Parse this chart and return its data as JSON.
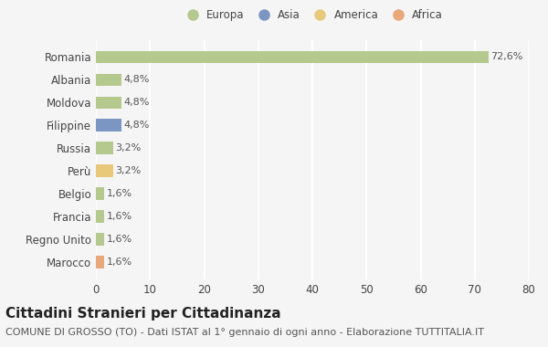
{
  "categories": [
    "Romania",
    "Albania",
    "Moldova",
    "Filippine",
    "Russia",
    "Perù",
    "Belgio",
    "Francia",
    "Regno Unito",
    "Marocco"
  ],
  "values": [
    72.6,
    4.8,
    4.8,
    4.8,
    3.2,
    3.2,
    1.6,
    1.6,
    1.6,
    1.6
  ],
  "labels": [
    "72,6%",
    "4,8%",
    "4,8%",
    "4,8%",
    "3,2%",
    "3,2%",
    "1,6%",
    "1,6%",
    "1,6%",
    "1,6%"
  ],
  "colors": [
    "#b5c98e",
    "#b5c98e",
    "#b5c98e",
    "#7b96c2",
    "#b5c98e",
    "#e8c97a",
    "#b5c98e",
    "#b5c98e",
    "#b5c98e",
    "#e8a87a"
  ],
  "legend_labels": [
    "Europa",
    "Asia",
    "America",
    "Africa"
  ],
  "legend_colors": [
    "#b5c98e",
    "#7b96c2",
    "#e8c97a",
    "#e8a87a"
  ],
  "title": "Cittadini Stranieri per Cittadinanza",
  "subtitle": "COMUNE DI GROSSO (TO) - Dati ISTAT al 1° gennaio di ogni anno - Elaborazione TUTTITALIA.IT",
  "xlim": [
    0,
    80
  ],
  "xticks": [
    0,
    10,
    20,
    30,
    40,
    50,
    60,
    70,
    80
  ],
  "background_color": "#f5f5f5",
  "grid_color": "#ffffff",
  "bar_height": 0.55,
  "title_fontsize": 11,
  "subtitle_fontsize": 8,
  "tick_fontsize": 8.5,
  "label_fontsize": 8,
  "legend_fontsize": 8.5
}
